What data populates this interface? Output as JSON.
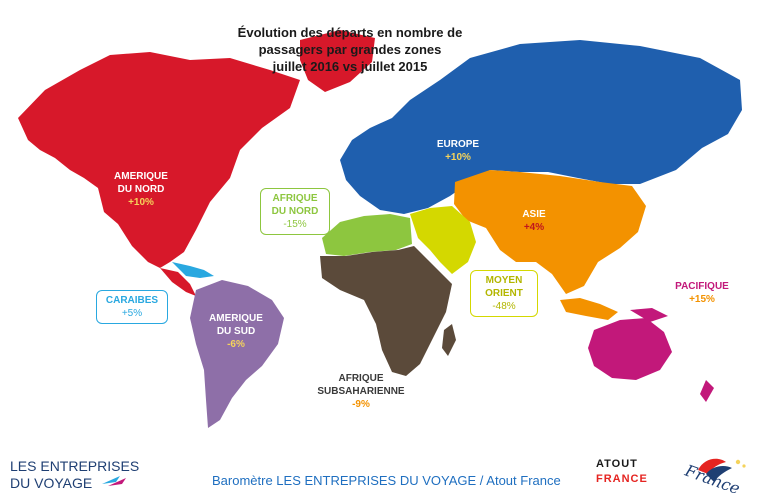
{
  "title": {
    "line1": "Évolution des départs en nombre de",
    "line2": "passagers  par grandes zones",
    "line3": "juillet 2016 vs juillet 2015"
  },
  "regions": [
    {
      "name": "AMERIQUE DU NORD",
      "value": "+10%",
      "color": "#d7182a",
      "change_pct": 10
    },
    {
      "name": "EUROPE",
      "value": "+10%",
      "color": "#1f5fae",
      "change_pct": 10
    },
    {
      "name": "ASIE",
      "value": "+4%",
      "color": "#f39200",
      "change_pct": 4
    },
    {
      "name": "AFRIQUE DU NORD",
      "value": "-15%",
      "color": "#8dc63f",
      "change_pct": -15
    },
    {
      "name": "MOYEN ORIENT",
      "value": "-48%",
      "color": "#d4d800",
      "change_pct": -48
    },
    {
      "name": "CARAIBES",
      "value": "+5%",
      "color": "#29a8e0",
      "change_pct": 5
    },
    {
      "name": "AMERIQUE DU SUD",
      "value": "-6%",
      "color": "#8e6fa8",
      "change_pct": -6
    },
    {
      "name": "AFRIQUE SUBSAHARIENNE",
      "value": "-9%",
      "color": "#5b4a3a",
      "change_pct": -9
    },
    {
      "name": "PACIFIQUE",
      "value": "+15%",
      "color": "#c2187a",
      "change_pct": 15
    }
  ],
  "labels": {
    "na1": "AMERIQUE",
    "na2": "DU NORD",
    "na_v": "+10%",
    "eu1": "EUROPE",
    "eu_v": "+10%",
    "as1": "ASIE",
    "as_v": "+4%",
    "afn1": "AFRIQUE",
    "afn2": "DU NORD",
    "afn_v": "-15%",
    "mo1": "MOYEN",
    "mo2": "ORIENT",
    "mo_v": "-48%",
    "ca1": "CARAIBES",
    "ca_v": "+5%",
    "sa1": "AMERIQUE",
    "sa2": "DU SUD",
    "sa_v": "-6%",
    "afs1": "AFRIQUE",
    "afs2": "SUBSAHARIENNE",
    "afs_v": "-9%",
    "pa1": "PACIFIQUE",
    "pa_v": "+15%"
  },
  "footer": {
    "left_line1": "LES ENTREPRISES",
    "left_line2": "DU VOYAGE",
    "center": "Baromètre LES ENTREPRISES DU VOYAGE / Atout France",
    "atout_line1": "ATOUT",
    "atout_line2": "FRANCE",
    "france_word": "France"
  }
}
